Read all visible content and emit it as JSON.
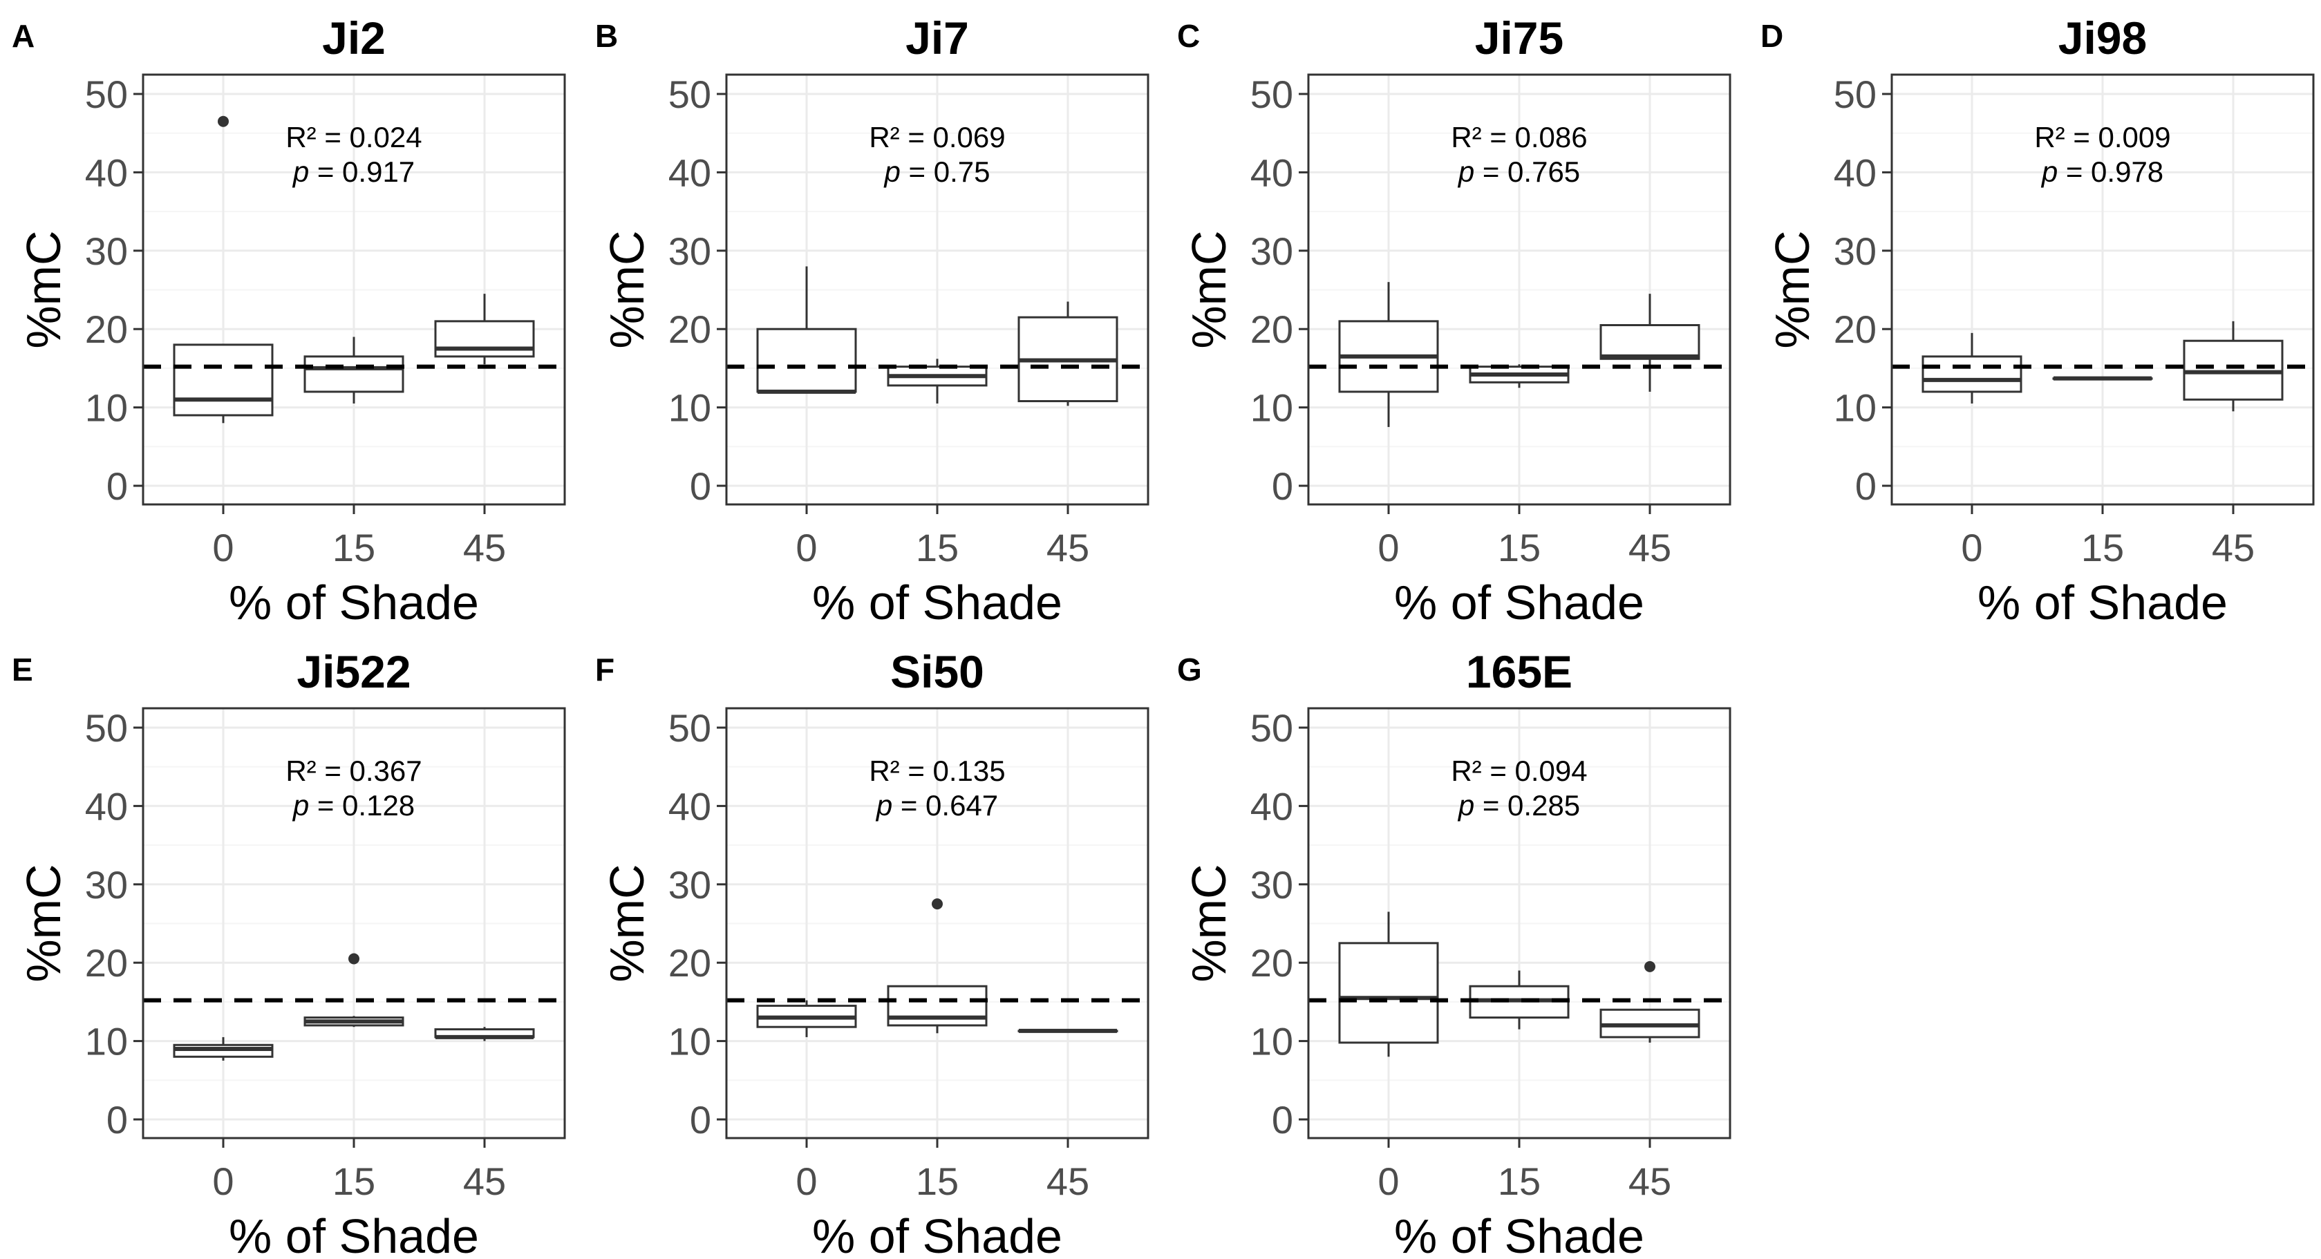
{
  "chart_data": [
    {
      "panel": "A",
      "title": "Ji2",
      "type": "box",
      "xlabel": "% of Shade",
      "ylabel": "%mC",
      "categories": [
        "0",
        "15",
        "45"
      ],
      "ylim": [
        0,
        50
      ],
      "yticks": [
        "0",
        "10",
        "20",
        "30",
        "40",
        "50"
      ],
      "reference_line": 15.2,
      "annotation": {
        "r2_label": "R² = 0.024",
        "p_symbol": "p",
        "p_value": " = 0.917"
      },
      "boxes": [
        {
          "category": "0",
          "min": 8,
          "q1": 9,
          "median": 11,
          "q3": 18,
          "max": 18,
          "outliers": [
            46.5
          ]
        },
        {
          "category": "15",
          "min": 10.5,
          "q1": 12,
          "median": 15,
          "q3": 16.5,
          "max": 19,
          "outliers": []
        },
        {
          "category": "45",
          "min": 15.5,
          "q1": 16.5,
          "median": 17.5,
          "q3": 21,
          "max": 24.5,
          "outliers": []
        }
      ]
    },
    {
      "panel": "B",
      "title": "Ji7",
      "type": "box",
      "xlabel": "% of Shade",
      "ylabel": "%mC",
      "categories": [
        "0",
        "15",
        "45"
      ],
      "ylim": [
        0,
        50
      ],
      "yticks": [
        "0",
        "10",
        "20",
        "30",
        "40",
        "50"
      ],
      "reference_line": 15.2,
      "annotation": {
        "r2_label": "R² = 0.069",
        "p_symbol": "p",
        "p_value": " = 0.75"
      },
      "boxes": [
        {
          "category": "0",
          "min": 12,
          "q1": 12,
          "median": 12,
          "q3": 20,
          "max": 28,
          "outliers": []
        },
        {
          "category": "15",
          "min": 10.5,
          "q1": 12.8,
          "median": 14,
          "q3": 15.2,
          "max": 16.2,
          "outliers": []
        },
        {
          "category": "45",
          "min": 10.2,
          "q1": 10.8,
          "median": 16,
          "q3": 21.5,
          "max": 23.5,
          "outliers": []
        }
      ]
    },
    {
      "panel": "C",
      "title": "Ji75",
      "type": "box",
      "xlabel": "% of Shade",
      "ylabel": "%mC",
      "categories": [
        "0",
        "15",
        "45"
      ],
      "ylim": [
        0,
        50
      ],
      "yticks": [
        "0",
        "10",
        "20",
        "30",
        "40",
        "50"
      ],
      "reference_line": 15.2,
      "annotation": {
        "r2_label": "R² = 0.086",
        "p_symbol": "p",
        "p_value": " = 0.765"
      },
      "boxes": [
        {
          "category": "0",
          "min": 7.5,
          "q1": 12,
          "median": 16.5,
          "q3": 21,
          "max": 26,
          "outliers": []
        },
        {
          "category": "15",
          "min": 12.5,
          "q1": 13.2,
          "median": 14.2,
          "q3": 15.2,
          "max": 15.5,
          "outliers": []
        },
        {
          "category": "45",
          "min": 12,
          "q1": 16.2,
          "median": 16.5,
          "q3": 20.5,
          "max": 24.5,
          "outliers": []
        }
      ]
    },
    {
      "panel": "D",
      "title": "Ji98",
      "type": "box",
      "xlabel": "% of Shade",
      "ylabel": "%mC",
      "categories": [
        "0",
        "15",
        "45"
      ],
      "ylim": [
        0,
        50
      ],
      "yticks": [
        "0",
        "10",
        "20",
        "30",
        "40",
        "50"
      ],
      "reference_line": 15.2,
      "annotation": {
        "r2_label": "R² = 0.009",
        "p_symbol": "p",
        "p_value": " = 0.978"
      },
      "boxes": [
        {
          "category": "0",
          "min": 10.5,
          "q1": 12,
          "median": 13.5,
          "q3": 16.5,
          "max": 19.5,
          "outliers": []
        },
        {
          "category": "15",
          "min": 13.7,
          "q1": 13.7,
          "median": 13.7,
          "q3": 13.7,
          "max": 13.7,
          "outliers": []
        },
        {
          "category": "45",
          "min": 9.5,
          "q1": 11,
          "median": 14.5,
          "q3": 18.5,
          "max": 21,
          "outliers": []
        }
      ]
    },
    {
      "panel": "E",
      "title": "Ji522",
      "type": "box",
      "xlabel": "% of Shade",
      "ylabel": "%mC",
      "categories": [
        "0",
        "15",
        "45"
      ],
      "ylim": [
        0,
        50
      ],
      "yticks": [
        "0",
        "10",
        "20",
        "30",
        "40",
        "50"
      ],
      "reference_line": 15.2,
      "annotation": {
        "r2_label": "R² = 0.367",
        "p_symbol": "p",
        "p_value": " = 0.128"
      },
      "boxes": [
        {
          "category": "0",
          "min": 7.5,
          "q1": 8,
          "median": 9,
          "q3": 9.5,
          "max": 10.5,
          "outliers": []
        },
        {
          "category": "15",
          "min": 11.8,
          "q1": 12,
          "median": 12.5,
          "q3": 13,
          "max": 13.2,
          "outliers": [
            20.5
          ]
        },
        {
          "category": "45",
          "min": 10,
          "q1": 10.5,
          "median": 10.5,
          "q3": 11.5,
          "max": 11.8,
          "outliers": []
        }
      ]
    },
    {
      "panel": "F",
      "title": "Si50",
      "type": "box",
      "xlabel": "% of Shade",
      "ylabel": "%mC",
      "categories": [
        "0",
        "15",
        "45"
      ],
      "ylim": [
        0,
        50
      ],
      "yticks": [
        "0",
        "10",
        "20",
        "30",
        "40",
        "50"
      ],
      "reference_line": 15.2,
      "annotation": {
        "r2_label": "R² = 0.135",
        "p_symbol": "p",
        "p_value": " = 0.647"
      },
      "boxes": [
        {
          "category": "0",
          "min": 10.5,
          "q1": 11.8,
          "median": 13,
          "q3": 14.5,
          "max": 15.2,
          "outliers": []
        },
        {
          "category": "15",
          "min": 11,
          "q1": 12,
          "median": 13,
          "q3": 17,
          "max": 17,
          "outliers": [
            27.5
          ]
        },
        {
          "category": "45",
          "min": 11.3,
          "q1": 11.3,
          "median": 11.3,
          "q3": 11.3,
          "max": 11.3,
          "outliers": []
        }
      ]
    },
    {
      "panel": "G",
      "title": "165E",
      "type": "box",
      "xlabel": "% of Shade",
      "ylabel": "%mC",
      "categories": [
        "0",
        "15",
        "45"
      ],
      "ylim": [
        0,
        50
      ],
      "yticks": [
        "0",
        "10",
        "20",
        "30",
        "40",
        "50"
      ],
      "reference_line": 15.2,
      "annotation": {
        "r2_label": "R² = 0.094",
        "p_symbol": "p",
        "p_value": " = 0.285"
      },
      "boxes": [
        {
          "category": "0",
          "min": 8,
          "q1": 9.8,
          "median": 15.5,
          "q3": 22.5,
          "max": 26.5,
          "outliers": []
        },
        {
          "category": "15",
          "min": 11.5,
          "q1": 13,
          "median": 15.2,
          "q3": 17,
          "max": 19,
          "outliers": []
        },
        {
          "category": "45",
          "min": 9.8,
          "q1": 10.5,
          "median": 12,
          "q3": 14,
          "max": 14,
          "outliers": [
            19.5
          ]
        }
      ]
    }
  ]
}
